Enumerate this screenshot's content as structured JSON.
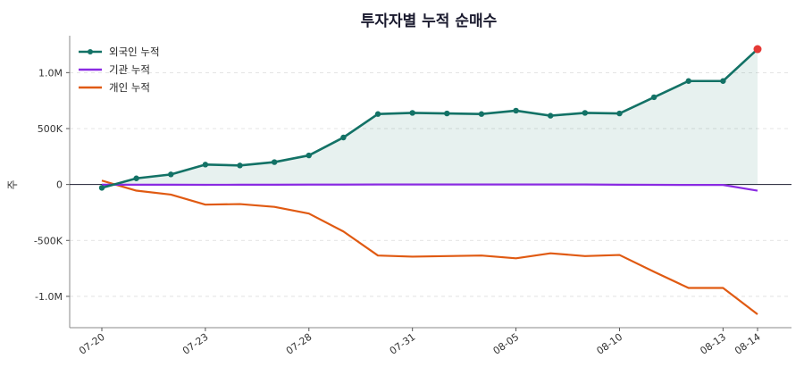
{
  "chart_data": {
    "type": "line",
    "title": "투자자별 누적 순매수",
    "ylabel": "주",
    "xlabel": "",
    "x": [
      "07-20",
      "07-21",
      "07-22",
      "07-23",
      "07-24",
      "07-27",
      "07-28",
      "07-29",
      "07-30",
      "07-31",
      "08-03",
      "08-04",
      "08-05",
      "08-06",
      "08-07",
      "08-10",
      "08-11",
      "08-12",
      "08-13",
      "08-14"
    ],
    "x_tick_labels": [
      "07-20",
      "07-23",
      "07-28",
      "07-31",
      "08-05",
      "08-10",
      "08-13",
      "08-14"
    ],
    "y_tick_values": [
      1000000,
      500000,
      0,
      -500000,
      -1000000
    ],
    "y_tick_labels": [
      "1.0M",
      "500K",
      "0",
      "-500K",
      "-1.0M"
    ],
    "ylim": [
      -1280000,
      1330000
    ],
    "grid": "horizontal-dashed",
    "legend": "top-left",
    "series": [
      {
        "name": "외국인 누적",
        "color": "#137266",
        "markers": true,
        "fill": true,
        "values": [
          -30000,
          55000,
          90000,
          178000,
          170000,
          200000,
          260000,
          420000,
          630000,
          640000,
          635000,
          630000,
          660000,
          615000,
          640000,
          635000,
          780000,
          925000,
          925000,
          1210000
        ]
      },
      {
        "name": "기관 누적",
        "color": "#8a2be2",
        "markers": false,
        "fill": false,
        "values": [
          -2000,
          -2000,
          -2000,
          -3000,
          -2000,
          -2000,
          -1000,
          -1000,
          0,
          0,
          0,
          0,
          0,
          0,
          0,
          -2000,
          -3000,
          -4000,
          -4000,
          -55000
        ]
      },
      {
        "name": "개인 누적",
        "color": "#e05a12",
        "markers": false,
        "fill": false,
        "values": [
          35000,
          -55000,
          -90000,
          -180000,
          -175000,
          -200000,
          -260000,
          -420000,
          -635000,
          -645000,
          -640000,
          -635000,
          -660000,
          -615000,
          -640000,
          -630000,
          -780000,
          -925000,
          -925000,
          -1160000
        ]
      }
    ],
    "last_point_color": "#e53935"
  }
}
